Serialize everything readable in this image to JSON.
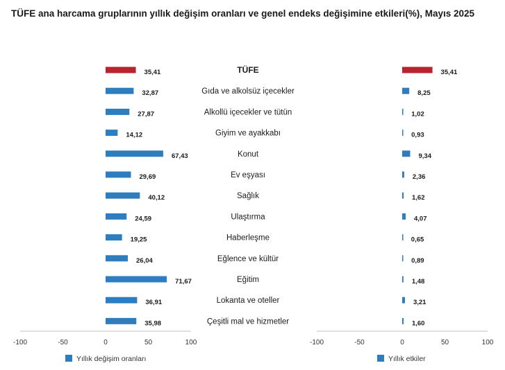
{
  "title": "TÜFE ana harcama gruplarının yıllık değişim oranları ve genel endeks değişimine etkileri(%), Mayıs 2025",
  "colors": {
    "highlight": "#b8232f",
    "series": "#2e7dbf",
    "axis": "#bfbfbf"
  },
  "chart_data": [
    {
      "type": "bar",
      "orientation": "horizontal",
      "categories": [
        "TÜFE",
        "Gıda ve alkolsüz içecekler",
        "Alkollü içecekler ve tütün",
        "Giyim ve ayakkabı",
        "Konut",
        "Ev eşyası",
        "Sağlık",
        "Ulaştırma",
        "Haberleşme",
        "Eğlence ve kültür",
        "Eğitim",
        "Lokanta ve oteller",
        "Çeşitli mal ve hizmetler"
      ],
      "values": [
        35.41,
        32.87,
        27.87,
        14.12,
        67.43,
        29.69,
        40.12,
        24.59,
        19.25,
        26.04,
        71.67,
        36.91,
        35.98
      ],
      "value_labels": [
        "35,41",
        "32,87",
        "27,87",
        "14,12",
        "67,43",
        "29,69",
        "40,12",
        "24,59",
        "19,25",
        "26,04",
        "71,67",
        "36,91",
        "35,98"
      ],
      "series_name": "Yıllık değişim oranları",
      "xlim": [
        -100,
        100
      ],
      "xticks": [
        "-100",
        "-50",
        "0",
        "50",
        "100"
      ],
      "legend": "bottom-left"
    },
    {
      "type": "bar",
      "orientation": "horizontal",
      "categories": [
        "TÜFE",
        "Gıda ve alkolsüz içecekler",
        "Alkollü içecekler ve tütün",
        "Giyim ve ayakkabı",
        "Konut",
        "Ev eşyası",
        "Sağlık",
        "Ulaştırma",
        "Haberleşme",
        "Eğlence ve kültür",
        "Eğitim",
        "Lokanta ve oteller",
        "Çeşitli mal ve hizmetler"
      ],
      "values": [
        35.41,
        8.25,
        1.02,
        0.93,
        9.34,
        2.36,
        1.62,
        4.07,
        0.65,
        0.89,
        1.48,
        3.21,
        1.6
      ],
      "value_labels": [
        "35,41",
        "8,25",
        "1,02",
        "0,93",
        "9,34",
        "2,36",
        "1,62",
        "4,07",
        "0,65",
        "0,89",
        "1,48",
        "3,21",
        "1,60"
      ],
      "series_name": "Yıllık etkiler",
      "xlim": [
        -100,
        100
      ],
      "xticks": [
        "-100",
        "-50",
        "0",
        "50",
        "100"
      ],
      "legend": "bottom-left"
    }
  ]
}
